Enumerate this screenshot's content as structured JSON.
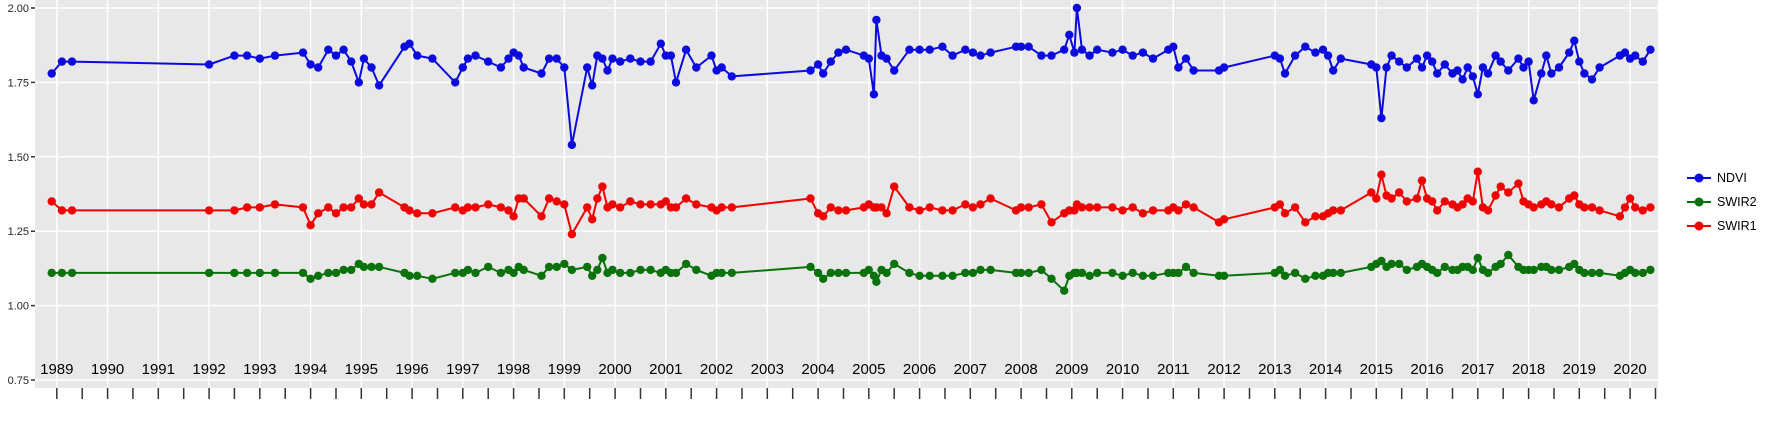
{
  "chart_data": {
    "type": "line",
    "title": "",
    "xlabel": "",
    "ylabel": "",
    "grid": true,
    "legend_position": "right",
    "panel_bg": "#e8e8e8",
    "grid_color": "#ffffff",
    "tick_color": "#333333",
    "xlim": [
      1988.57,
      2020.55
    ],
    "ylim": [
      0.75,
      2.0
    ],
    "xticks": [
      1989,
      1990,
      1991,
      1992,
      1993,
      1994,
      1995,
      1996,
      1997,
      1998,
      1999,
      2000,
      2001,
      2002,
      2003,
      2004,
      2005,
      2006,
      2007,
      2008,
      2009,
      2010,
      2011,
      2012,
      2013,
      2014,
      2015,
      2016,
      2017,
      2018,
      2019,
      2020
    ],
    "ytick_labels": [
      "2.00",
      "1.75",
      "1.50",
      "1.25",
      "1.00",
      "0.75"
    ],
    "ytick_values": [
      2.0,
      1.75,
      1.5,
      1.25,
      1.0,
      0.75
    ],
    "x": [
      1988.9,
      1989.1,
      1989.3,
      1992.0,
      1992.5,
      1992.75,
      1993.0,
      1993.3,
      1993.85,
      1994.0,
      1994.15,
      1994.35,
      1994.5,
      1994.65,
      1994.8,
      1994.95,
      1995.05,
      1995.2,
      1995.35,
      1995.85,
      1995.95,
      1996.1,
      1996.4,
      1996.85,
      1997.0,
      1997.1,
      1997.25,
      1997.5,
      1997.75,
      1997.9,
      1998.0,
      1998.1,
      1998.2,
      1998.55,
      1998.7,
      1998.85,
      1999.0,
      1999.15,
      1999.45,
      1999.55,
      1999.65,
      1999.75,
      1999.85,
      1999.95,
      2000.1,
      2000.3,
      2000.5,
      2000.7,
      2000.9,
      2001.0,
      2001.1,
      2001.2,
      2001.4,
      2001.6,
      2001.9,
      2002.0,
      2002.1,
      2002.3,
      2003.85,
      2004.0,
      2004.1,
      2004.25,
      2004.4,
      2004.55,
      2004.9,
      2005.0,
      2005.1,
      2005.15,
      2005.25,
      2005.35,
      2005.5,
      2005.8,
      2006.0,
      2006.2,
      2006.45,
      2006.65,
      2006.9,
      2007.05,
      2007.2,
      2007.4,
      2007.9,
      2008.0,
      2008.15,
      2008.4,
      2008.6,
      2008.85,
      2008.95,
      2009.05,
      2009.1,
      2009.2,
      2009.35,
      2009.5,
      2009.8,
      2010.0,
      2010.2,
      2010.4,
      2010.6,
      2010.9,
      2011.0,
      2011.1,
      2011.25,
      2011.4,
      2011.9,
      2012.0,
      2013.0,
      2013.1,
      2013.2,
      2013.4,
      2013.6,
      2013.8,
      2013.95,
      2014.05,
      2014.15,
      2014.3,
      2014.9,
      2015.0,
      2015.1,
      2015.2,
      2015.3,
      2015.45,
      2015.6,
      2015.8,
      2015.9,
      2016.0,
      2016.1,
      2016.2,
      2016.35,
      2016.5,
      2016.6,
      2016.7,
      2016.8,
      2016.9,
      2017.0,
      2017.1,
      2017.2,
      2017.35,
      2017.45,
      2017.6,
      2017.8,
      2017.9,
      2018.0,
      2018.1,
      2018.25,
      2018.35,
      2018.45,
      2018.6,
      2018.8,
      2018.9,
      2019.0,
      2019.1,
      2019.25,
      2019.4,
      2019.8,
      2019.9,
      2020.0,
      2020.1,
      2020.25,
      2020.4
    ],
    "series": [
      {
        "name": "NDVI",
        "color": "#0b0be0",
        "y": [
          1.78,
          1.82,
          1.82,
          1.81,
          1.84,
          1.84,
          1.83,
          1.84,
          1.85,
          1.81,
          1.8,
          1.86,
          1.84,
          1.86,
          1.82,
          1.75,
          1.83,
          1.8,
          1.74,
          1.87,
          1.88,
          1.84,
          1.83,
          1.75,
          1.8,
          1.83,
          1.84,
          1.82,
          1.8,
          1.83,
          1.85,
          1.84,
          1.8,
          1.78,
          1.83,
          1.83,
          1.8,
          1.54,
          1.8,
          1.74,
          1.84,
          1.83,
          1.79,
          1.83,
          1.82,
          1.83,
          1.82,
          1.82,
          1.88,
          1.84,
          1.84,
          1.75,
          1.86,
          1.8,
          1.84,
          1.79,
          1.8,
          1.77,
          1.79,
          1.81,
          1.78,
          1.82,
          1.85,
          1.86,
          1.84,
          1.83,
          1.71,
          1.96,
          1.84,
          1.83,
          1.79,
          1.86,
          1.86,
          1.86,
          1.87,
          1.84,
          1.86,
          1.85,
          1.84,
          1.85,
          1.87,
          1.87,
          1.87,
          1.84,
          1.84,
          1.86,
          1.91,
          1.85,
          2.0,
          1.86,
          1.84,
          1.86,
          1.85,
          1.86,
          1.84,
          1.85,
          1.83,
          1.86,
          1.87,
          1.8,
          1.83,
          1.79,
          1.79,
          1.8,
          1.84,
          1.83,
          1.78,
          1.84,
          1.87,
          1.85,
          1.86,
          1.84,
          1.79,
          1.83,
          1.81,
          1.8,
          1.63,
          1.8,
          1.84,
          1.82,
          1.8,
          1.83,
          1.8,
          1.84,
          1.82,
          1.78,
          1.81,
          1.78,
          1.79,
          1.76,
          1.8,
          1.77,
          1.71,
          1.8,
          1.78,
          1.84,
          1.82,
          1.79,
          1.83,
          1.8,
          1.82,
          1.69,
          1.78,
          1.84,
          1.78,
          1.8,
          1.85,
          1.89,
          1.82,
          1.78,
          1.76,
          1.8,
          1.84,
          1.85,
          1.83,
          1.84,
          1.82,
          1.86
        ]
      },
      {
        "name": "SWIR2",
        "color": "#0a720a",
        "y": [
          1.11,
          1.11,
          1.11,
          1.11,
          1.11,
          1.11,
          1.11,
          1.11,
          1.11,
          1.09,
          1.1,
          1.11,
          1.11,
          1.12,
          1.12,
          1.14,
          1.13,
          1.13,
          1.13,
          1.11,
          1.1,
          1.1,
          1.09,
          1.11,
          1.11,
          1.12,
          1.11,
          1.13,
          1.11,
          1.12,
          1.11,
          1.13,
          1.12,
          1.1,
          1.13,
          1.13,
          1.14,
          1.12,
          1.13,
          1.1,
          1.12,
          1.16,
          1.11,
          1.12,
          1.11,
          1.11,
          1.12,
          1.12,
          1.11,
          1.12,
          1.11,
          1.11,
          1.14,
          1.12,
          1.1,
          1.11,
          1.11,
          1.11,
          1.13,
          1.11,
          1.09,
          1.11,
          1.11,
          1.11,
          1.11,
          1.12,
          1.1,
          1.08,
          1.12,
          1.11,
          1.14,
          1.11,
          1.1,
          1.1,
          1.1,
          1.1,
          1.11,
          1.11,
          1.12,
          1.12,
          1.11,
          1.11,
          1.11,
          1.12,
          1.09,
          1.05,
          1.1,
          1.11,
          1.11,
          1.11,
          1.1,
          1.11,
          1.11,
          1.1,
          1.11,
          1.1,
          1.1,
          1.11,
          1.11,
          1.11,
          1.13,
          1.11,
          1.1,
          1.1,
          1.11,
          1.12,
          1.1,
          1.11,
          1.09,
          1.1,
          1.1,
          1.11,
          1.11,
          1.11,
          1.13,
          1.14,
          1.15,
          1.13,
          1.14,
          1.14,
          1.12,
          1.13,
          1.14,
          1.13,
          1.12,
          1.11,
          1.13,
          1.12,
          1.12,
          1.13,
          1.13,
          1.12,
          1.16,
          1.12,
          1.11,
          1.13,
          1.14,
          1.17,
          1.13,
          1.12,
          1.12,
          1.12,
          1.13,
          1.13,
          1.12,
          1.12,
          1.13,
          1.14,
          1.12,
          1.11,
          1.11,
          1.11,
          1.1,
          1.11,
          1.12,
          1.11,
          1.11,
          1.12
        ]
      },
      {
        "name": "SWIR1",
        "color": "#f20000",
        "y": [
          1.35,
          1.32,
          1.32,
          1.32,
          1.32,
          1.33,
          1.33,
          1.34,
          1.33,
          1.27,
          1.31,
          1.33,
          1.31,
          1.33,
          1.33,
          1.36,
          1.34,
          1.34,
          1.38,
          1.33,
          1.32,
          1.31,
          1.31,
          1.33,
          1.32,
          1.33,
          1.33,
          1.34,
          1.33,
          1.32,
          1.3,
          1.36,
          1.36,
          1.3,
          1.36,
          1.35,
          1.34,
          1.24,
          1.33,
          1.29,
          1.36,
          1.4,
          1.33,
          1.34,
          1.33,
          1.35,
          1.34,
          1.34,
          1.34,
          1.35,
          1.33,
          1.33,
          1.36,
          1.34,
          1.33,
          1.32,
          1.33,
          1.33,
          1.36,
          1.31,
          1.3,
          1.33,
          1.32,
          1.32,
          1.33,
          1.34,
          1.33,
          1.33,
          1.33,
          1.31,
          1.4,
          1.33,
          1.32,
          1.33,
          1.32,
          1.32,
          1.34,
          1.33,
          1.34,
          1.36,
          1.32,
          1.33,
          1.33,
          1.34,
          1.28,
          1.31,
          1.32,
          1.32,
          1.34,
          1.33,
          1.33,
          1.33,
          1.33,
          1.32,
          1.33,
          1.31,
          1.32,
          1.32,
          1.33,
          1.32,
          1.34,
          1.33,
          1.28,
          1.29,
          1.33,
          1.34,
          1.31,
          1.33,
          1.28,
          1.3,
          1.3,
          1.31,
          1.32,
          1.32,
          1.38,
          1.36,
          1.44,
          1.37,
          1.36,
          1.38,
          1.35,
          1.36,
          1.42,
          1.36,
          1.35,
          1.32,
          1.35,
          1.34,
          1.33,
          1.34,
          1.36,
          1.35,
          1.45,
          1.33,
          1.32,
          1.37,
          1.4,
          1.38,
          1.41,
          1.35,
          1.34,
          1.33,
          1.34,
          1.35,
          1.34,
          1.33,
          1.36,
          1.37,
          1.34,
          1.33,
          1.33,
          1.32,
          1.3,
          1.33,
          1.36,
          1.33,
          1.32,
          1.33
        ]
      }
    ]
  }
}
